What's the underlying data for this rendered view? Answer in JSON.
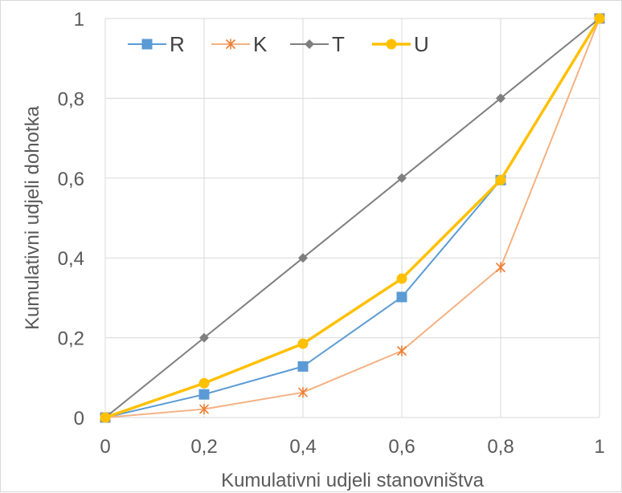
{
  "chart_data": {
    "type": "line",
    "x": [
      0,
      0.2,
      0.4,
      0.6,
      0.8,
      1
    ],
    "x_tick_labels": [
      "0",
      "0,2",
      "0,4",
      "0,6",
      "0,8",
      "1"
    ],
    "y_tick_labels": [
      "0",
      "0,2",
      "0,4",
      "0,6",
      "0,8",
      "1"
    ],
    "y_ticks": [
      0,
      0.2,
      0.4,
      0.6,
      0.8,
      1
    ],
    "xlim": [
      0,
      1
    ],
    "ylim": [
      0,
      1
    ],
    "xlabel": "Kumulativni udjeli stanovništva",
    "ylabel": "Kumulativni udjeli dohotka",
    "grid": "vertical and horizontal",
    "legend_position": "top-left",
    "series": [
      {
        "name": "R",
        "color": "#5b9bd5",
        "marker": "square",
        "width": 2,
        "values": [
          0,
          0.058,
          0.128,
          0.302,
          0.595,
          1
        ]
      },
      {
        "name": "K",
        "color": "#f4b183",
        "marker": "asterisk",
        "width": 2,
        "values": [
          0,
          0.021,
          0.063,
          0.167,
          0.376,
          1
        ]
      },
      {
        "name": "T",
        "color": "#7f7f7f",
        "marker": "diamond",
        "width": 2,
        "values": [
          0,
          0.2,
          0.4,
          0.6,
          0.8,
          1
        ]
      },
      {
        "name": "U",
        "color": "#ffc000",
        "marker": "circle",
        "width": 3.5,
        "values": [
          0,
          0.086,
          0.185,
          0.348,
          0.595,
          1
        ]
      }
    ]
  }
}
